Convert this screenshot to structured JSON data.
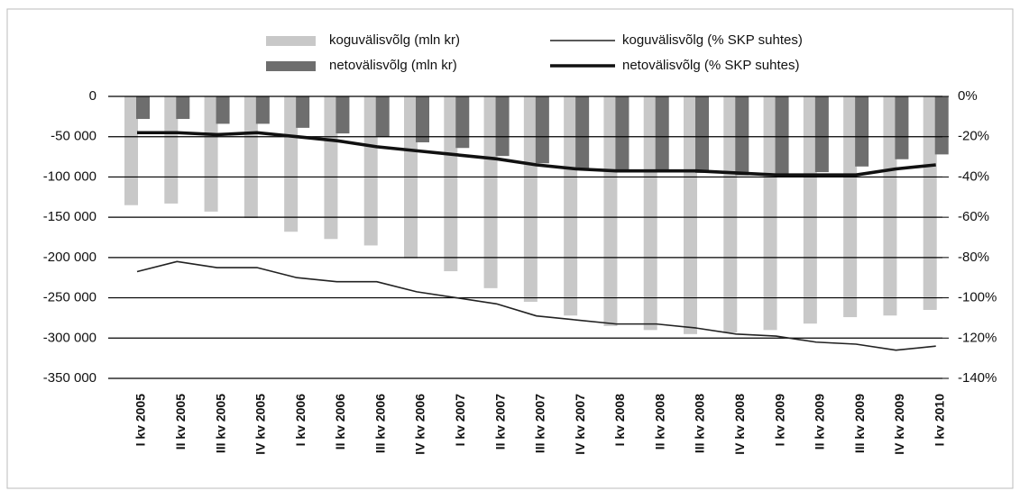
{
  "chart_data": {
    "type": "combo",
    "categories": [
      "I kv 2005",
      "II kv 2005",
      "III kv 2005",
      "IV kv 2005",
      "I kv 2006",
      "II kv 2006",
      "III kv 2006",
      "IV kv 2006",
      "I kv 2007",
      "II kv 2007",
      "III kv 2007",
      "IV kv 2007",
      "I kv 2008",
      "II kv 2008",
      "III kv 2008",
      "IV kv 2008",
      "I kv 2009",
      "II kv 2009",
      "III kv 2009",
      "IV kv 2009",
      "I kv 2010"
    ],
    "series": [
      {
        "name": "koguvälisvõlg (mln kr)",
        "type": "bar",
        "color": "#c8c8c8",
        "values": [
          -135000,
          -133000,
          -143000,
          -151000,
          -168000,
          -177000,
          -185000,
          -201000,
          -217000,
          -238000,
          -255000,
          -272000,
          -285000,
          -290000,
          -295000,
          -293000,
          -290000,
          -282000,
          -274000,
          -272000,
          -265000
        ]
      },
      {
        "name": "netovälisvõlg (mln kr)",
        "type": "bar",
        "color": "#6e6e6e",
        "values": [
          -28000,
          -28000,
          -34000,
          -34000,
          -39000,
          -46000,
          -50000,
          -57000,
          -64000,
          -74000,
          -83000,
          -89000,
          -94000,
          -94000,
          -95000,
          -98000,
          -99000,
          -94000,
          -87000,
          -78000,
          -72000
        ]
      },
      {
        "name": "koguvälisvõlg (% SKP suhtes)",
        "type": "line",
        "axis": "y2",
        "color": "#222222",
        "values": [
          -87,
          -82,
          -85,
          -85,
          -90,
          -92,
          -92,
          -97,
          -100,
          -103,
          -109,
          -111,
          -113,
          -113,
          -115,
          -118,
          -119,
          -122,
          -123,
          -126,
          -124
        ]
      },
      {
        "name": "netovälisvõlg (% SKP suhtes)",
        "type": "line",
        "axis": "y2",
        "color": "#111111",
        "values": [
          -18,
          -18,
          -19,
          -18,
          -20,
          -22,
          -25,
          -27,
          -29,
          -31,
          -34,
          -36,
          -37,
          -37,
          -37,
          -38,
          -39,
          -39,
          -39,
          -36,
          -34
        ]
      }
    ],
    "ylim": [
      -350000,
      0
    ],
    "yticks": [
      0,
      {
        "value": -50000,
        "label": "-50 000"
      },
      {
        "value": -100000,
        "label": "-100 000"
      },
      {
        "value": -150000,
        "label": "-150 000"
      },
      {
        "value": -200000,
        "label": "-200 000"
      },
      {
        "value": -250000,
        "label": "-250 000"
      },
      {
        "value": -300000,
        "label": "-300 000"
      },
      {
        "value": -350000,
        "label": "-350 000"
      }
    ],
    "y2lim": [
      -140,
      0
    ],
    "y2ticks": [
      {
        "value": 0,
        "label": "0%"
      },
      {
        "value": -20,
        "label": "-20%"
      },
      {
        "value": -40,
        "label": "-40%"
      },
      {
        "value": -60,
        "label": "-60%"
      },
      {
        "value": -80,
        "label": "-80%"
      },
      {
        "value": -100,
        "label": "-100%"
      },
      {
        "value": -120,
        "label": "-120%"
      },
      {
        "value": -140,
        "label": "-140%"
      }
    ],
    "grid": true
  }
}
